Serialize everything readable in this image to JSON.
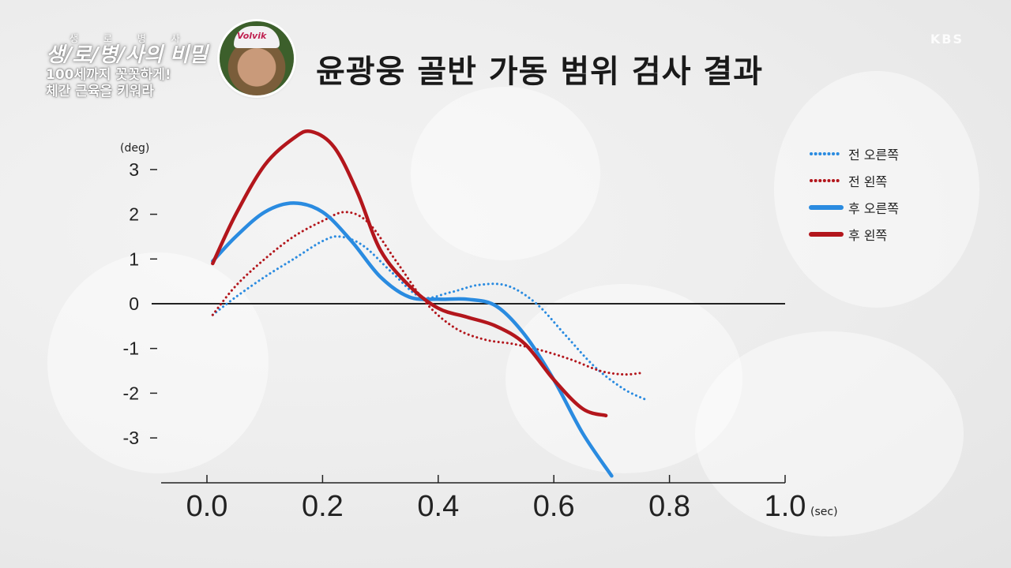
{
  "program": {
    "small_caption": "생 로 병 사",
    "title": "생/로/병/사의 비밀",
    "subtitle_line1": "100세까지 꼿꼿하게!",
    "subtitle_line2": "체간 근육을 키워라",
    "cap_text": "Volvik"
  },
  "page_title": "윤광웅 골반 가동 범위 검사 결과",
  "watermark": "KBS",
  "colors": {
    "blue": "#2a8be0",
    "red": "#b3161c",
    "axis": "#222222"
  },
  "chart_data": {
    "type": "line",
    "title": "윤광웅 골반 가동 범위 검사 결과",
    "ylabel": "(deg)",
    "xlabel": "(sec)",
    "xlim": [
      -0.08,
      1.0
    ],
    "ylim": [
      -4.0,
      3.8
    ],
    "x_ticks": [
      "0.0",
      "0.2",
      "0.4",
      "0.6",
      "0.8",
      "1.0"
    ],
    "y_ticks": [
      "3",
      "2",
      "1",
      "0",
      "-1",
      "-2",
      "-3"
    ],
    "grid": false,
    "legend_position": "top-right",
    "series": [
      {
        "name": "전 오른쪽",
        "color": "#2a8be0",
        "style": "dotted",
        "x": [
          0.01,
          0.05,
          0.1,
          0.15,
          0.2,
          0.23,
          0.27,
          0.32,
          0.37,
          0.42,
          0.47,
          0.52,
          0.57,
          0.62,
          0.67,
          0.72,
          0.76
        ],
        "y": [
          -0.25,
          0.15,
          0.6,
          1.0,
          1.4,
          1.5,
          1.3,
          0.7,
          0.15,
          0.25,
          0.42,
          0.4,
          0.0,
          -0.7,
          -1.4,
          -1.9,
          -2.15
        ]
      },
      {
        "name": "전 왼쪽",
        "color": "#b3161c",
        "style": "dotted",
        "x": [
          0.01,
          0.05,
          0.1,
          0.15,
          0.2,
          0.24,
          0.28,
          0.33,
          0.38,
          0.43,
          0.48,
          0.53,
          0.58,
          0.63,
          0.68,
          0.72,
          0.75
        ],
        "y": [
          -0.25,
          0.4,
          1.0,
          1.5,
          1.85,
          2.05,
          1.8,
          0.9,
          0.0,
          -0.55,
          -0.8,
          -0.9,
          -1.05,
          -1.25,
          -1.5,
          -1.58,
          -1.55
        ]
      },
      {
        "name": "후 오른쪽",
        "color": "#2a8be0",
        "style": "solid",
        "x": [
          0.01,
          0.05,
          0.1,
          0.15,
          0.2,
          0.25,
          0.3,
          0.35,
          0.4,
          0.45,
          0.5,
          0.55,
          0.6,
          0.65,
          0.7
        ],
        "y": [
          0.95,
          1.5,
          2.05,
          2.25,
          2.05,
          1.4,
          0.6,
          0.15,
          0.1,
          0.1,
          -0.05,
          -0.7,
          -1.7,
          -2.9,
          -3.85
        ]
      },
      {
        "name": "후 왼쪽",
        "color": "#b3161c",
        "style": "solid",
        "x": [
          0.01,
          0.05,
          0.1,
          0.15,
          0.18,
          0.22,
          0.26,
          0.3,
          0.35,
          0.4,
          0.45,
          0.5,
          0.55,
          0.6,
          0.65,
          0.69
        ],
        "y": [
          0.9,
          2.0,
          3.1,
          3.7,
          3.85,
          3.5,
          2.5,
          1.2,
          0.4,
          -0.1,
          -0.3,
          -0.5,
          -0.9,
          -1.7,
          -2.35,
          -2.5
        ]
      }
    ]
  }
}
